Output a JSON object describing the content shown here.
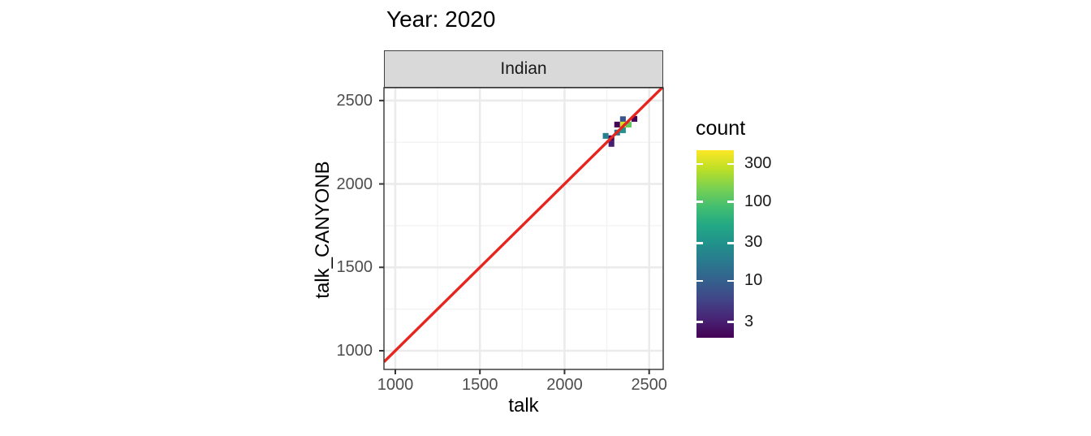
{
  "page": {
    "background": "#ffffff"
  },
  "chart_data": {
    "type": "heatmap",
    "subtype": "bin2d-scatter-comparison",
    "title": "Year: 2020",
    "facet_label": "Indian",
    "xlabel": "talk",
    "ylabel": "talk_CANYONB",
    "x_ticks": [
      1000,
      1500,
      2000,
      2500
    ],
    "y_ticks": [
      1000,
      1500,
      2000,
      2500
    ],
    "x_minor_ticks": [
      1250,
      1750,
      2250
    ],
    "y_minor_ticks": [
      1250,
      1750,
      2250
    ],
    "x_domain": [
      933,
      2583
    ],
    "y_domain": [
      888,
      2577
    ],
    "grid": "on",
    "bin_size": 34,
    "bins": [
      {
        "x": 2413,
        "y": 2390,
        "count": 2
      },
      {
        "x": 2345,
        "y": 2388,
        "count": 8
      },
      {
        "x": 2311,
        "y": 2356,
        "count": 2
      },
      {
        "x": 2345,
        "y": 2356,
        "count": 300
      },
      {
        "x": 2379,
        "y": 2356,
        "count": 120
      },
      {
        "x": 2345,
        "y": 2322,
        "count": 30
      },
      {
        "x": 2311,
        "y": 2308,
        "count": 15
      },
      {
        "x": 2243,
        "y": 2288,
        "count": 20
      },
      {
        "x": 2277,
        "y": 2274,
        "count": 2
      },
      {
        "x": 2277,
        "y": 2240,
        "count": 3
      }
    ],
    "identity_line": {
      "slope": 1,
      "intercept": 0,
      "color": "#e6251f"
    },
    "legend": {
      "title": "count",
      "position": "right",
      "scale": "log10",
      "domain": [
        1.9,
        450
      ],
      "ticks": [
        300,
        100,
        30,
        10,
        3
      ],
      "viridis_stops": [
        "#440154",
        "#482475",
        "#414487",
        "#355f8d",
        "#2a788e",
        "#21918c",
        "#22a884",
        "#44bf70",
        "#7ad151",
        "#bddf26",
        "#fde725"
      ]
    },
    "colors": {
      "grid_major": "#ebebeb",
      "grid_minor": "#f3f3f3",
      "panel_border": "#333333",
      "strip_fill": "#d9d9d9",
      "strip_border": "#404040",
      "tick_mark": "#333333",
      "tick_label": "#4d4d4d",
      "title_text": "#000000"
    }
  }
}
